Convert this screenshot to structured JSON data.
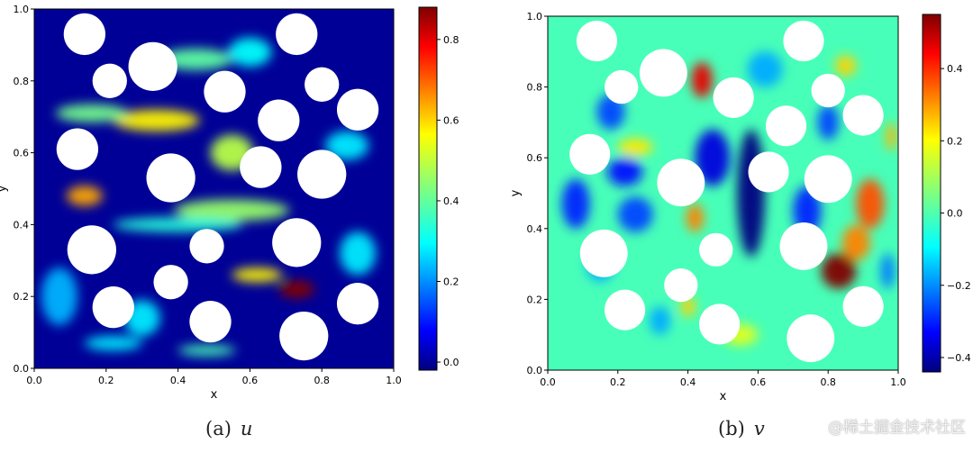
{
  "chart_data": [
    {
      "type": "heatmap",
      "field": "u",
      "caption_label": "(a)",
      "caption_symbol": "u",
      "xlabel": "x",
      "ylabel": "y",
      "xlim": [
        0.0,
        1.0
      ],
      "ylim": [
        0.0,
        1.0
      ],
      "xticks": [
        "0.0",
        "0.2",
        "0.4",
        "0.6",
        "0.8",
        "1.0"
      ],
      "yticks": [
        "0.0",
        "0.2",
        "0.4",
        "0.6",
        "0.8",
        "1.0"
      ],
      "colormap": "jet",
      "colorbar_range": [
        -0.02,
        0.88
      ],
      "colorbar_ticks": [
        "0.0",
        "0.2",
        "0.4",
        "0.6",
        "0.8"
      ],
      "background_value": 0.0,
      "obstacles": [
        {
          "cx": 0.14,
          "cy": 0.93,
          "r": 0.058
        },
        {
          "cx": 0.73,
          "cy": 0.93,
          "r": 0.058
        },
        {
          "cx": 0.21,
          "cy": 0.8,
          "r": 0.048
        },
        {
          "cx": 0.33,
          "cy": 0.84,
          "r": 0.068
        },
        {
          "cx": 0.53,
          "cy": 0.77,
          "r": 0.058
        },
        {
          "cx": 0.8,
          "cy": 0.79,
          "r": 0.048
        },
        {
          "cx": 0.9,
          "cy": 0.72,
          "r": 0.058
        },
        {
          "cx": 0.68,
          "cy": 0.69,
          "r": 0.058
        },
        {
          "cx": 0.12,
          "cy": 0.61,
          "r": 0.058
        },
        {
          "cx": 0.38,
          "cy": 0.53,
          "r": 0.068
        },
        {
          "cx": 0.63,
          "cy": 0.56,
          "r": 0.058
        },
        {
          "cx": 0.8,
          "cy": 0.54,
          "r": 0.068
        },
        {
          "cx": 0.16,
          "cy": 0.33,
          "r": 0.068
        },
        {
          "cx": 0.48,
          "cy": 0.34,
          "r": 0.048
        },
        {
          "cx": 0.73,
          "cy": 0.35,
          "r": 0.068
        },
        {
          "cx": 0.38,
          "cy": 0.24,
          "r": 0.048
        },
        {
          "cx": 0.22,
          "cy": 0.17,
          "r": 0.058
        },
        {
          "cx": 0.49,
          "cy": 0.13,
          "r": 0.058
        },
        {
          "cx": 0.9,
          "cy": 0.18,
          "r": 0.058
        },
        {
          "cx": 0.75,
          "cy": 0.09,
          "r": 0.068
        }
      ],
      "features": [
        {
          "x": 0.14,
          "y": 0.48,
          "value": 0.62,
          "sx": 0.05,
          "sy": 0.028
        },
        {
          "x": 0.73,
          "y": 0.22,
          "value": 0.88,
          "sx": 0.05,
          "sy": 0.025
        },
        {
          "x": 0.34,
          "y": 0.69,
          "value": 0.55,
          "sx": 0.12,
          "sy": 0.03
        },
        {
          "x": 0.55,
          "y": 0.44,
          "value": 0.45,
          "sx": 0.16,
          "sy": 0.03
        },
        {
          "x": 0.16,
          "y": 0.71,
          "value": 0.42,
          "sx": 0.1,
          "sy": 0.025
        },
        {
          "x": 0.55,
          "y": 0.6,
          "value": 0.48,
          "sx": 0.06,
          "sy": 0.05
        },
        {
          "x": 0.45,
          "y": 0.86,
          "value": 0.4,
          "sx": 0.1,
          "sy": 0.03
        },
        {
          "x": 0.4,
          "y": 0.4,
          "value": 0.35,
          "sx": 0.18,
          "sy": 0.02
        },
        {
          "x": 0.07,
          "y": 0.2,
          "value": 0.25,
          "sx": 0.05,
          "sy": 0.08
        },
        {
          "x": 0.22,
          "y": 0.07,
          "value": 0.3,
          "sx": 0.08,
          "sy": 0.02
        },
        {
          "x": 0.48,
          "y": 0.05,
          "value": 0.38,
          "sx": 0.08,
          "sy": 0.015
        },
        {
          "x": 0.62,
          "y": 0.26,
          "value": 0.55,
          "sx": 0.07,
          "sy": 0.02
        },
        {
          "x": 0.9,
          "y": 0.32,
          "value": 0.3,
          "sx": 0.05,
          "sy": 0.06
        },
        {
          "x": 0.87,
          "y": 0.62,
          "value": 0.3,
          "sx": 0.06,
          "sy": 0.04
        },
        {
          "x": 0.6,
          "y": 0.88,
          "value": 0.32,
          "sx": 0.06,
          "sy": 0.04
        },
        {
          "x": 0.3,
          "y": 0.14,
          "value": 0.3,
          "sx": 0.05,
          "sy": 0.05
        }
      ]
    },
    {
      "type": "heatmap",
      "field": "v",
      "caption_label": "(b)",
      "caption_symbol": "v",
      "xlabel": "x",
      "ylabel": "y",
      "xlim": [
        0.0,
        1.0
      ],
      "ylim": [
        0.0,
        1.0
      ],
      "xticks": [
        "0.0",
        "0.2",
        "0.4",
        "0.6",
        "0.8",
        "1.0"
      ],
      "yticks": [
        "0.0",
        "0.2",
        "0.4",
        "0.6",
        "0.8",
        "1.0"
      ],
      "colormap": "jet",
      "colorbar_range": [
        -0.44,
        0.55
      ],
      "colorbar_ticks": [
        "−0.4",
        "−0.2",
        "0.0",
        "0.2",
        "0.4"
      ],
      "background_value": 0.0,
      "obstacles": [
        {
          "cx": 0.14,
          "cy": 0.93,
          "r": 0.058
        },
        {
          "cx": 0.73,
          "cy": 0.93,
          "r": 0.058
        },
        {
          "cx": 0.21,
          "cy": 0.8,
          "r": 0.048
        },
        {
          "cx": 0.33,
          "cy": 0.84,
          "r": 0.068
        },
        {
          "cx": 0.53,
          "cy": 0.77,
          "r": 0.058
        },
        {
          "cx": 0.8,
          "cy": 0.79,
          "r": 0.048
        },
        {
          "cx": 0.9,
          "cy": 0.72,
          "r": 0.058
        },
        {
          "cx": 0.68,
          "cy": 0.69,
          "r": 0.058
        },
        {
          "cx": 0.12,
          "cy": 0.61,
          "r": 0.058
        },
        {
          "cx": 0.38,
          "cy": 0.53,
          "r": 0.068
        },
        {
          "cx": 0.63,
          "cy": 0.56,
          "r": 0.058
        },
        {
          "cx": 0.8,
          "cy": 0.54,
          "r": 0.068
        },
        {
          "cx": 0.16,
          "cy": 0.33,
          "r": 0.068
        },
        {
          "cx": 0.48,
          "cy": 0.34,
          "r": 0.048
        },
        {
          "cx": 0.73,
          "cy": 0.35,
          "r": 0.068
        },
        {
          "cx": 0.38,
          "cy": 0.24,
          "r": 0.048
        },
        {
          "cx": 0.22,
          "cy": 0.17,
          "r": 0.058
        },
        {
          "cx": 0.49,
          "cy": 0.13,
          "r": 0.058
        },
        {
          "cx": 0.9,
          "cy": 0.18,
          "r": 0.058
        },
        {
          "cx": 0.75,
          "cy": 0.09,
          "r": 0.068
        }
      ],
      "features": [
        {
          "x": 0.58,
          "y": 0.5,
          "value": -0.44,
          "sx": 0.04,
          "sy": 0.18
        },
        {
          "x": 0.83,
          "y": 0.28,
          "value": 0.55,
          "sx": 0.05,
          "sy": 0.05
        },
        {
          "x": 0.92,
          "y": 0.47,
          "value": 0.35,
          "sx": 0.04,
          "sy": 0.07
        },
        {
          "x": 0.44,
          "y": 0.82,
          "value": 0.45,
          "sx": 0.03,
          "sy": 0.05
        },
        {
          "x": 0.42,
          "y": 0.43,
          "value": 0.3,
          "sx": 0.025,
          "sy": 0.04
        },
        {
          "x": 0.22,
          "y": 0.56,
          "value": -0.3,
          "sx": 0.05,
          "sy": 0.04
        },
        {
          "x": 0.08,
          "y": 0.47,
          "value": -0.28,
          "sx": 0.04,
          "sy": 0.07
        },
        {
          "x": 0.25,
          "y": 0.44,
          "value": -0.25,
          "sx": 0.05,
          "sy": 0.05
        },
        {
          "x": 0.18,
          "y": 0.73,
          "value": -0.25,
          "sx": 0.04,
          "sy": 0.05
        },
        {
          "x": 0.74,
          "y": 0.45,
          "value": -0.28,
          "sx": 0.04,
          "sy": 0.07
        },
        {
          "x": 0.8,
          "y": 0.7,
          "value": -0.25,
          "sx": 0.03,
          "sy": 0.05
        },
        {
          "x": 0.97,
          "y": 0.28,
          "value": -0.2,
          "sx": 0.02,
          "sy": 0.05
        },
        {
          "x": 0.62,
          "y": 0.85,
          "value": -0.15,
          "sx": 0.05,
          "sy": 0.05
        },
        {
          "x": 0.47,
          "y": 0.6,
          "value": -0.35,
          "sx": 0.05,
          "sy": 0.08
        },
        {
          "x": 0.88,
          "y": 0.36,
          "value": 0.3,
          "sx": 0.04,
          "sy": 0.05
        },
        {
          "x": 0.98,
          "y": 0.66,
          "value": 0.25,
          "sx": 0.015,
          "sy": 0.04
        },
        {
          "x": 0.25,
          "y": 0.63,
          "value": 0.2,
          "sx": 0.05,
          "sy": 0.025
        },
        {
          "x": 0.55,
          "y": 0.1,
          "value": 0.15,
          "sx": 0.05,
          "sy": 0.03
        },
        {
          "x": 0.4,
          "y": 0.18,
          "value": 0.22,
          "sx": 0.02,
          "sy": 0.03
        },
        {
          "x": 0.85,
          "y": 0.86,
          "value": 0.22,
          "sx": 0.03,
          "sy": 0.03
        },
        {
          "x": 0.15,
          "y": 0.3,
          "value": -0.15,
          "sx": 0.04,
          "sy": 0.05
        },
        {
          "x": 0.32,
          "y": 0.14,
          "value": -0.15,
          "sx": 0.03,
          "sy": 0.04
        }
      ]
    }
  ],
  "watermark": "@稀土掘金技术社区"
}
